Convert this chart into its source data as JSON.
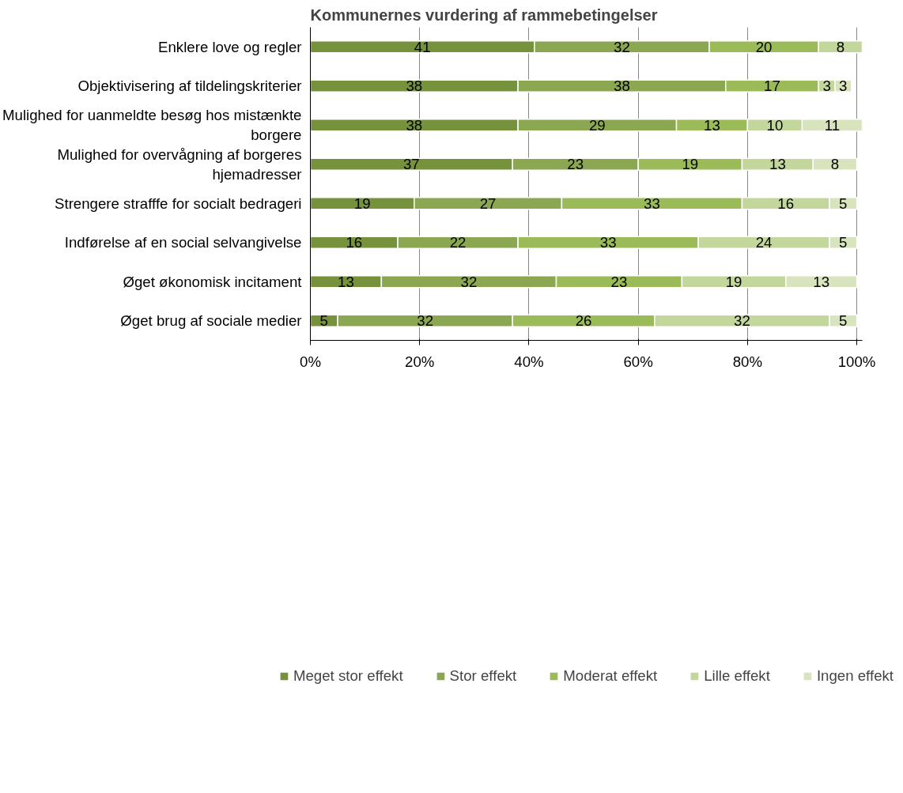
{
  "chart_data": {
    "type": "bar",
    "orientation": "horizontal",
    "stacked": true,
    "title": "Kommunernes vurdering af rammebetingelser",
    "categories": [
      "Enklere love og regler",
      "Objektivisering af tildelingskriterier",
      "Mulighed for uanmeldte besøg hos mistænkte borgere",
      "Mulighed for overvågning af borgeres hjemadresser",
      "Strengere strafffe for socialt bedrageri",
      "Indførelse af en social selvangivelse",
      "Øget økonomisk incitament",
      "Øget brug af sociale medier"
    ],
    "series": [
      {
        "name": "Meget stor effekt",
        "color": "#76923c",
        "values": [
          41,
          38,
          38,
          37,
          19,
          16,
          13,
          5
        ]
      },
      {
        "name": "Stor effekt",
        "color": "#8ba752",
        "values": [
          32,
          38,
          29,
          23,
          27,
          22,
          32,
          32
        ]
      },
      {
        "name": "Moderat effekt",
        "color": "#9bbb59",
        "values": [
          20,
          17,
          13,
          19,
          33,
          33,
          23,
          26
        ]
      },
      {
        "name": "Lille effekt",
        "color": "#c3d69b",
        "values": [
          8,
          3,
          10,
          13,
          16,
          24,
          19,
          32
        ]
      },
      {
        "name": "Ingen effekt",
        "color": "#d7e4bd",
        "values": [
          null,
          3,
          11,
          8,
          5,
          5,
          13,
          5
        ]
      }
    ],
    "xlim": [
      0,
      101
    ],
    "xticks": [
      {
        "value": 0,
        "label": "0%"
      },
      {
        "value": 20,
        "label": "20%"
      },
      {
        "value": 40,
        "label": "40%"
      },
      {
        "value": 60,
        "label": "60%"
      },
      {
        "value": 80,
        "label": "80%"
      },
      {
        "value": 100,
        "label": "100%"
      }
    ],
    "grid": "x",
    "legend": "bottom",
    "data_labels": true
  }
}
